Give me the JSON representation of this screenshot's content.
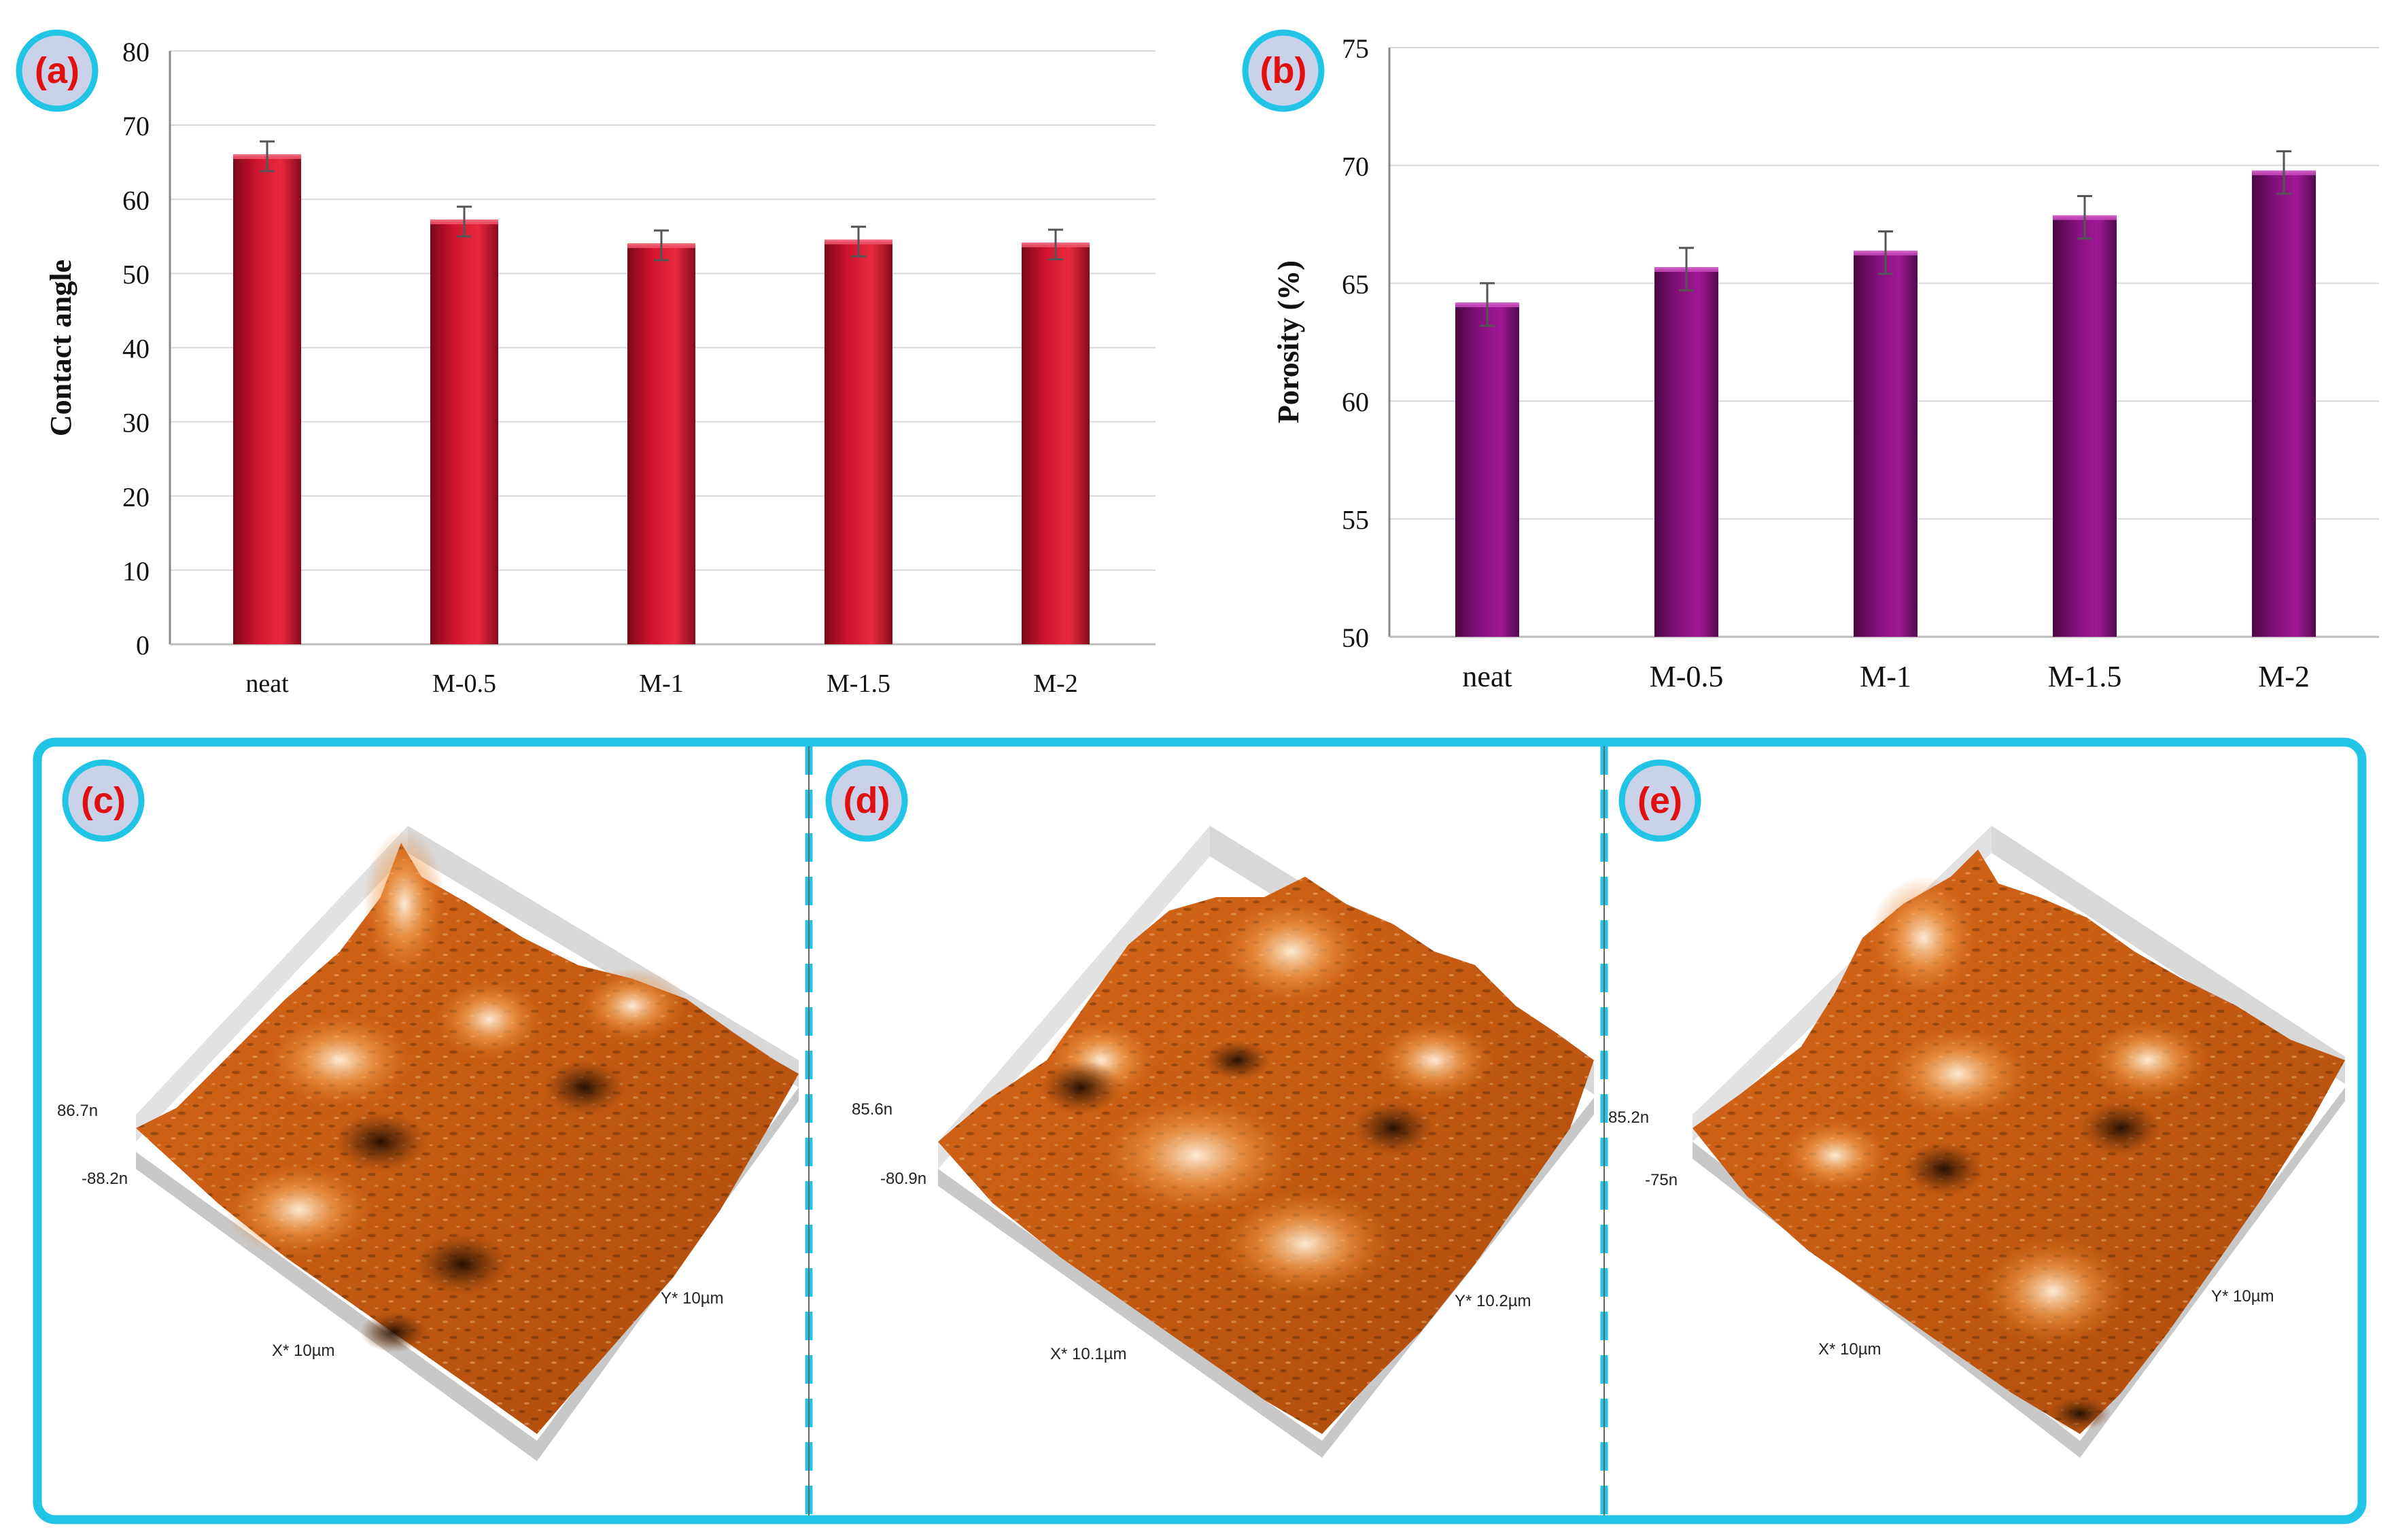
{
  "panel_labels": {
    "a": "(a)",
    "b": "(b)",
    "c": "(c)",
    "d": "(d)",
    "e": "(e)"
  },
  "colors": {
    "label_text": "#e01010",
    "label_fill": "#c9d2e8",
    "label_ring": "#22c4e6",
    "bar_a": "#c8102e",
    "bar_b": "#7d0f74",
    "frame": "#22c4e6",
    "afm_light": "#ffe2bf",
    "afm_mid": "#e3741a",
    "afm_dark": "#3a1a05"
  },
  "chart_data": [
    {
      "type": "bar",
      "panel": "a",
      "title": "",
      "xlabel": "",
      "ylabel": "Contact angle",
      "categories": [
        "neat",
        "M-0.5",
        "M-1",
        "M-1.5",
        "M-2"
      ],
      "values": [
        65.8,
        57.0,
        53.8,
        54.3,
        53.9
      ],
      "errors": [
        2.0,
        2.0,
        2.0,
        2.0,
        2.0
      ],
      "ylim": [
        0,
        80
      ],
      "yticks": [
        0,
        10,
        20,
        30,
        40,
        50,
        60,
        70,
        80
      ],
      "grid": true
    },
    {
      "type": "bar",
      "panel": "b",
      "title": "",
      "xlabel": "",
      "ylabel": "Porosity (%)",
      "categories": [
        "neat",
        "M-0.5",
        "M-1",
        "M-1.5",
        "M-2"
      ],
      "values": [
        64.1,
        65.6,
        66.3,
        67.8,
        69.7
      ],
      "errors": [
        0.9,
        0.9,
        0.9,
        0.9,
        0.9
      ],
      "ylim": [
        50,
        75
      ],
      "yticks": [
        50,
        55,
        60,
        65,
        70,
        75
      ],
      "grid": true
    }
  ],
  "afm": [
    {
      "panel": "c",
      "z_max": "86.7n",
      "z_min": "-88.2n",
      "x_label": "X* 10µm",
      "y_label": "Y* 10µm"
    },
    {
      "panel": "d",
      "z_max": "85.6n",
      "z_min": "-80.9n",
      "x_label": "X* 10.1µm",
      "y_label": "Y* 10.2µm"
    },
    {
      "panel": "e",
      "z_max": "85.2n",
      "z_min": "-75n",
      "x_label": "X* 10µm",
      "y_label": "Y* 10µm"
    }
  ]
}
